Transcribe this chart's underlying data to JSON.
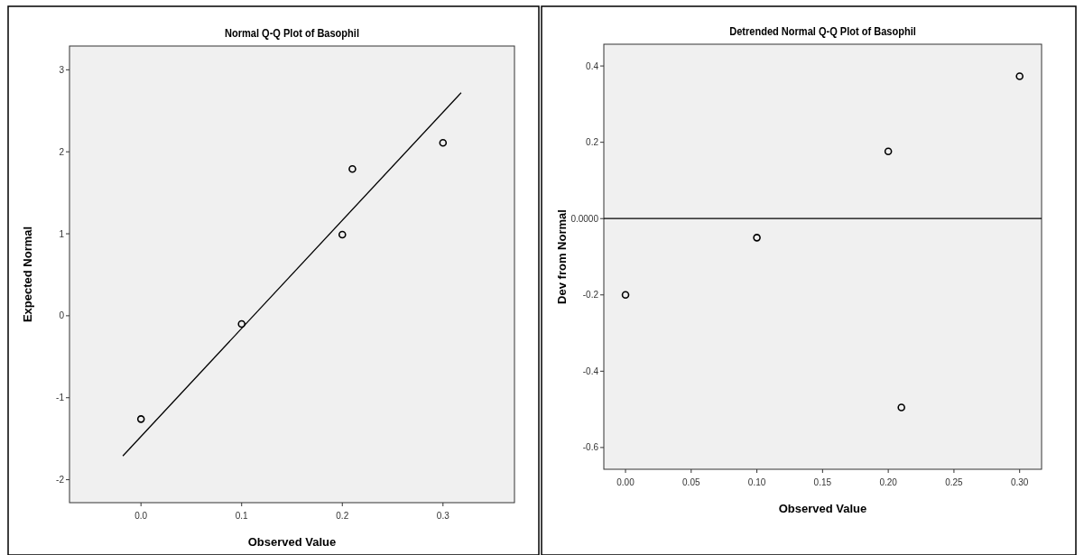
{
  "chart_data": [
    {
      "type": "scatter",
      "title": "Normal Q-Q Plot of Basophil",
      "xlabel": "Observed Value",
      "ylabel": "Expected Normal",
      "xlim": [
        -0.071,
        0.371
      ],
      "ylim": [
        -2.28,
        3.29
      ],
      "xticks": [
        {
          "value": 0,
          "label": "0.0"
        },
        0.1,
        0.2,
        0.3
      ],
      "yticks": [
        -2,
        -1,
        0,
        1,
        2,
        3
      ],
      "grid": false,
      "marker": "circle",
      "series": [
        {
          "color": "#000000",
          "x": [
            0,
            0.1,
            0.2,
            0.21,
            0.3
          ],
          "values": [
            -1.26,
            -0.1,
            0.99,
            1.79,
            2.11
          ]
        },
        {
          "type": "line",
          "marker": "none",
          "color": "#000000",
          "x": [
            -0.018,
            0.318
          ],
          "values": [
            -1.71,
            2.72
          ]
        }
      ]
    },
    {
      "type": "scatter",
      "title": "Detrended Normal Q-Q Plot of Basophil",
      "xlabel": "Observed Value",
      "ylabel": "Dev from Normal",
      "xlim": [
        -0.0165,
        0.3167
      ],
      "ylim": [
        -0.657,
        0.457
      ],
      "xticks": [
        {
          "value": 0,
          "label": "0.00"
        },
        0.05,
        {
          "value": 0.1,
          "label": "0.10"
        },
        0.15,
        {
          "value": 0.2,
          "label": "0.20"
        },
        0.25,
        {
          "value": 0.3,
          "label": "0.30"
        }
      ],
      "yticks": [
        -0.6,
        -0.4,
        -0.2,
        {
          "value": 0,
          "label": "0.0000"
        },
        0.2,
        0.4
      ],
      "grid": false,
      "marker": "circle",
      "ref_lines": [
        {
          "axis": "y",
          "value": 0,
          "color": "#000000"
        }
      ],
      "series": [
        {
          "color": "#000000",
          "x": [
            0,
            0.1,
            0.2,
            0.21,
            0.3
          ],
          "values": [
            -0.2,
            -0.05,
            0.176,
            -0.495,
            0.373
          ]
        }
      ]
    }
  ]
}
